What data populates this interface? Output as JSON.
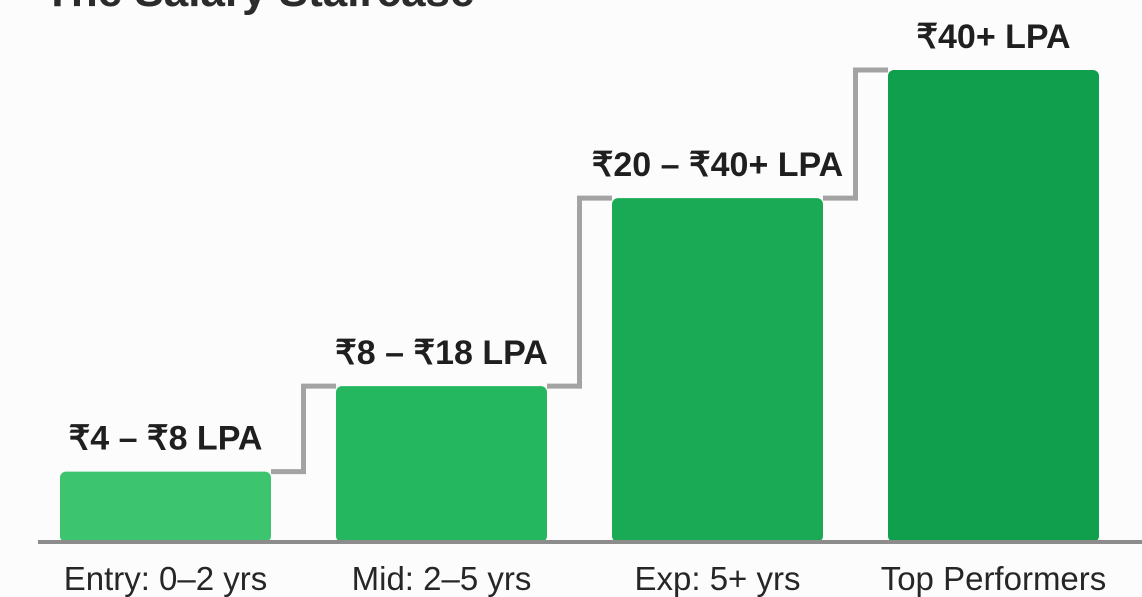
{
  "chart_data": {
    "type": "bar",
    "title": "The Salary Staircase",
    "categories": [
      "Entry: 0–2 yrs",
      "Mid: 2–5 yrs",
      "Exp: 5+ yrs",
      "Top Performers"
    ],
    "series": [
      {
        "values": [
          8,
          18,
          40,
          55
        ],
        "labels": [
          "₹4 – ₹8 LPA",
          "₹8 – ₹18 LPA",
          "₹20 – ₹40+ LPA",
          "₹40+ LPA"
        ]
      }
    ],
    "colors": [
      "#3cc46f",
      "#25b75f",
      "#1aaa55",
      "#10a04d"
    ],
    "connector_color": "#a3a3a3",
    "baseline_color": "#8c8c8c",
    "grid": false
  }
}
